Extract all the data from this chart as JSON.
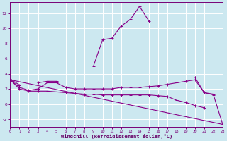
{
  "title": "",
  "xlabel": "Windchill (Refroidissement éolien,°C)",
  "background_color": "#cce8f0",
  "grid_color": "#aad8e8",
  "line_color": "#880088",
  "x_values": [
    0,
    1,
    2,
    3,
    4,
    5,
    6,
    7,
    8,
    9,
    10,
    11,
    12,
    13,
    14,
    15,
    16,
    17,
    18,
    19,
    20,
    21,
    22,
    23
  ],
  "series1": [
    3.3,
    2.5,
    null,
    2.8,
    3.0,
    3.0,
    null,
    null,
    null,
    5.0,
    8.5,
    8.7,
    10.3,
    11.2,
    12.9,
    11.0,
    null,
    null,
    null,
    null,
    3.5,
    null,
    null,
    null
  ],
  "series2": [
    3.2,
    2.2,
    1.8,
    2.0,
    2.8,
    2.8,
    2.2,
    2.0,
    2.0,
    2.0,
    2.0,
    2.0,
    2.2,
    2.2,
    2.2,
    2.3,
    2.4,
    2.6,
    2.8,
    3.0,
    3.2,
    1.5,
    1.3,
    null
  ],
  "series3": [
    3.2,
    2.0,
    1.7,
    1.7,
    1.7,
    1.6,
    1.5,
    1.4,
    1.3,
    1.3,
    1.2,
    1.2,
    1.2,
    1.2,
    1.2,
    1.2,
    1.1,
    1.0,
    0.5,
    0.2,
    -0.2,
    -0.5,
    null,
    null
  ],
  "series4_x": [
    0,
    23
  ],
  "series4_y": [
    3.2,
    -2.7
  ],
  "series5": [
    null,
    null,
    null,
    null,
    null,
    null,
    null,
    null,
    null,
    null,
    null,
    null,
    null,
    null,
    null,
    null,
    null,
    null,
    null,
    null,
    3.5,
    1.5,
    1.2,
    -2.7
  ],
  "ylim": [
    -3.0,
    13.5
  ],
  "xlim": [
    0,
    23
  ],
  "yticks": [
    -2,
    0,
    2,
    4,
    6,
    8,
    10,
    12
  ],
  "xticks": [
    0,
    1,
    2,
    3,
    4,
    5,
    6,
    7,
    8,
    9,
    10,
    11,
    12,
    13,
    14,
    15,
    16,
    17,
    18,
    19,
    20,
    21,
    22,
    23
  ]
}
